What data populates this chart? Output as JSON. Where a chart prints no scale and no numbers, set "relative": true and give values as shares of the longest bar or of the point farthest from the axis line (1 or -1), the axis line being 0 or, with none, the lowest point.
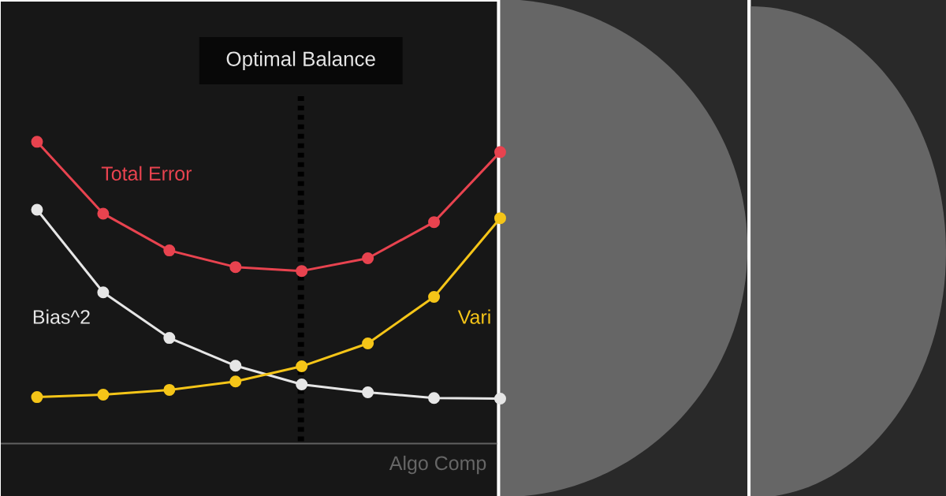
{
  "chart_data": {
    "type": "line",
    "relative": true,
    "xlabel": "Algo Comp",
    "categories": [
      null,
      null,
      null,
      null,
      null,
      null,
      null,
      null
    ],
    "series": [
      {
        "name": "Total Error",
        "color": "#e8434f",
        "values": [
          1,
          0.762,
          0.64,
          0.585,
          0.572,
          0.614,
          0.734,
          0.966
        ]
      },
      {
        "name": "Bias^2",
        "color": "#e6e6e6",
        "values": [
          0.775,
          0.501,
          0.35,
          0.258,
          0.196,
          0.17,
          0.151,
          0.149
        ]
      },
      {
        "name": "Vari",
        "color": "#f5c518",
        "values": [
          0.154,
          0.162,
          0.178,
          0.206,
          0.256,
          0.332,
          0.486,
          0.747
        ]
      }
    ],
    "annotations": [
      "Optimal Balance"
    ],
    "marker": "circle",
    "line_style": "solid",
    "legend": false
  }
}
